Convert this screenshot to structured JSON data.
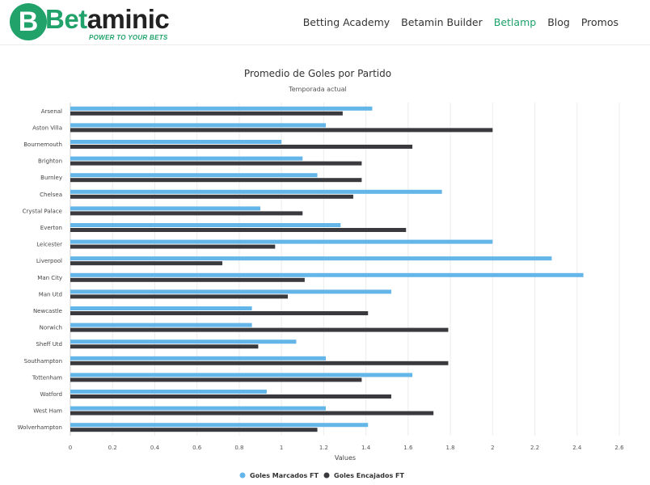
{
  "header": {
    "logo_letter": "B",
    "logo_green": "Bet",
    "logo_dark": "aminic",
    "tagline": "POWER TO YOUR BETS",
    "nav": [
      {
        "label": "Betting Academy",
        "active": false
      },
      {
        "label": "Betamin Builder",
        "active": false
      },
      {
        "label": "Betlamp",
        "active": true
      },
      {
        "label": "Blog",
        "active": false
      },
      {
        "label": "Promos",
        "active": false
      }
    ],
    "accent_color": "#20a26a"
  },
  "chart_data": {
    "type": "bar",
    "orientation": "horizontal",
    "title": "Promedio de Goles por Partido",
    "subtitle": "Temporada actual",
    "xlabel": "Values",
    "xlim": [
      0,
      2.6
    ],
    "xticks": [
      "0",
      "0.2",
      "0.4",
      "0.6",
      "0.8",
      "1",
      "1.2",
      "1.4",
      "1.6",
      "1.8",
      "2",
      "2.2",
      "2.4",
      "2.6"
    ],
    "grid": true,
    "legend_position": "bottom",
    "categories": [
      "Arsenal",
      "Aston Villa",
      "Bournemouth",
      "Brighton",
      "Burnley",
      "Chelsea",
      "Crystal Palace",
      "Everton",
      "Leicester",
      "Liverpool",
      "Man City",
      "Man Utd",
      "Newcastle",
      "Norwich",
      "Sheff Utd",
      "Southampton",
      "Tottenham",
      "Watford",
      "West Ham",
      "Wolverhampton"
    ],
    "series": [
      {
        "name": "Goles Marcados FT",
        "color": "#64b5e8",
        "values": [
          1.43,
          1.21,
          1.0,
          1.1,
          1.17,
          1.76,
          0.9,
          1.28,
          2.0,
          2.28,
          2.43,
          1.52,
          0.86,
          0.86,
          1.07,
          1.21,
          1.62,
          0.93,
          1.21,
          1.41
        ]
      },
      {
        "name": "Goles Encajados FT",
        "color": "#3a3a3e",
        "values": [
          1.29,
          2.0,
          1.62,
          1.38,
          1.38,
          1.34,
          1.1,
          1.59,
          0.97,
          0.72,
          1.11,
          1.03,
          1.41,
          1.79,
          0.89,
          1.79,
          1.38,
          1.52,
          1.72,
          1.17
        ]
      }
    ]
  }
}
